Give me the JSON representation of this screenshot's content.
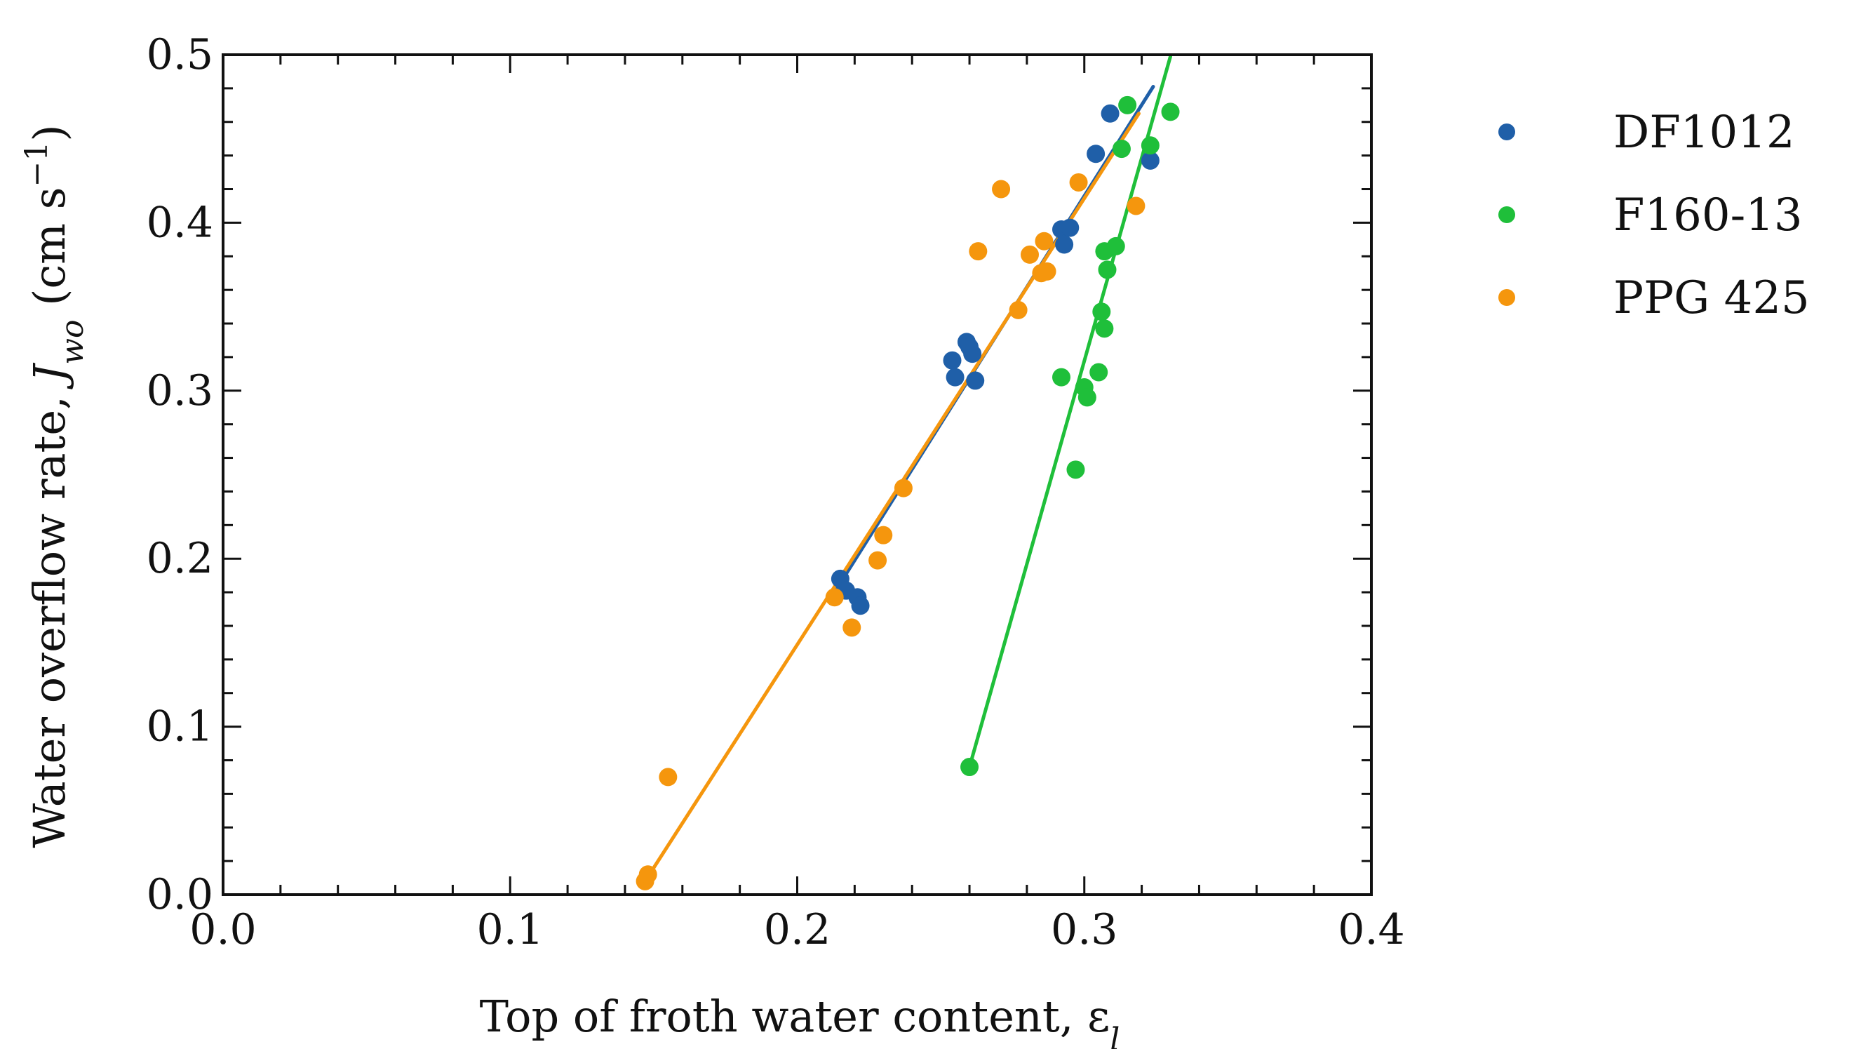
{
  "chart_data": {
    "type": "scatter",
    "title": "",
    "xlabel": "Top of froth water content, ε",
    "xlabel_subscript": "l",
    "ylabel_prefix": "Water overflow rate, ",
    "ylabel_var": "J",
    "ylabel_sub": "wo",
    "ylabel_units": " (cm s",
    "ylabel_exp": "−1",
    "ylabel_close": ")",
    "xlim": [
      0.0,
      0.4
    ],
    "ylim": [
      0.0,
      0.5
    ],
    "x_ticks": [
      0.0,
      0.1,
      0.2,
      0.3,
      0.4
    ],
    "x_tick_labels": [
      "0.0",
      "0.1",
      "0.2",
      "0.3",
      "0.4"
    ],
    "y_ticks": [
      0.0,
      0.1,
      0.2,
      0.3,
      0.4,
      0.5
    ],
    "y_tick_labels": [
      "0.0",
      "0.1",
      "0.2",
      "0.3",
      "0.4",
      "0.5"
    ],
    "grid": false,
    "legend_position": "outside-right",
    "series": [
      {
        "name": "DF1012",
        "color": "#1f5fa8",
        "points": [
          [
            0.215,
            0.188
          ],
          [
            0.217,
            0.181
          ],
          [
            0.221,
            0.177
          ],
          [
            0.222,
            0.172
          ],
          [
            0.254,
            0.318
          ],
          [
            0.255,
            0.308
          ],
          [
            0.259,
            0.329
          ],
          [
            0.26,
            0.326
          ],
          [
            0.261,
            0.322
          ],
          [
            0.262,
            0.306
          ],
          [
            0.292,
            0.396
          ],
          [
            0.293,
            0.387
          ],
          [
            0.295,
            0.397
          ],
          [
            0.304,
            0.441
          ],
          [
            0.309,
            0.465
          ],
          [
            0.323,
            0.437
          ]
        ],
        "fit_line": [
          [
            0.213,
            0.18
          ],
          [
            0.324,
            0.481
          ]
        ]
      },
      {
        "name": "F160-13",
        "color": "#1fbf3a",
        "points": [
          [
            0.26,
            0.076
          ],
          [
            0.292,
            0.308
          ],
          [
            0.297,
            0.253
          ],
          [
            0.3,
            0.302
          ],
          [
            0.301,
            0.296
          ],
          [
            0.305,
            0.311
          ],
          [
            0.306,
            0.347
          ],
          [
            0.307,
            0.337
          ],
          [
            0.307,
            0.383
          ],
          [
            0.308,
            0.372
          ],
          [
            0.311,
            0.386
          ],
          [
            0.313,
            0.444
          ],
          [
            0.315,
            0.47
          ],
          [
            0.323,
            0.446
          ],
          [
            0.33,
            0.466
          ]
        ],
        "fit_line": [
          [
            0.26,
            0.076
          ],
          [
            0.33,
            0.499
          ]
        ]
      },
      {
        "name": "PPG 425",
        "color": "#f5960d",
        "points": [
          [
            0.147,
            0.008
          ],
          [
            0.148,
            0.012
          ],
          [
            0.155,
            0.07
          ],
          [
            0.213,
            0.177
          ],
          [
            0.219,
            0.159
          ],
          [
            0.228,
            0.199
          ],
          [
            0.23,
            0.214
          ],
          [
            0.237,
            0.242
          ],
          [
            0.263,
            0.383
          ],
          [
            0.271,
            0.42
          ],
          [
            0.277,
            0.348
          ],
          [
            0.281,
            0.381
          ],
          [
            0.285,
            0.37
          ],
          [
            0.286,
            0.389
          ],
          [
            0.287,
            0.371
          ],
          [
            0.298,
            0.424
          ],
          [
            0.318,
            0.41
          ]
        ],
        "fit_line": [
          [
            0.147,
            0.008
          ],
          [
            0.319,
            0.465
          ]
        ]
      }
    ]
  }
}
